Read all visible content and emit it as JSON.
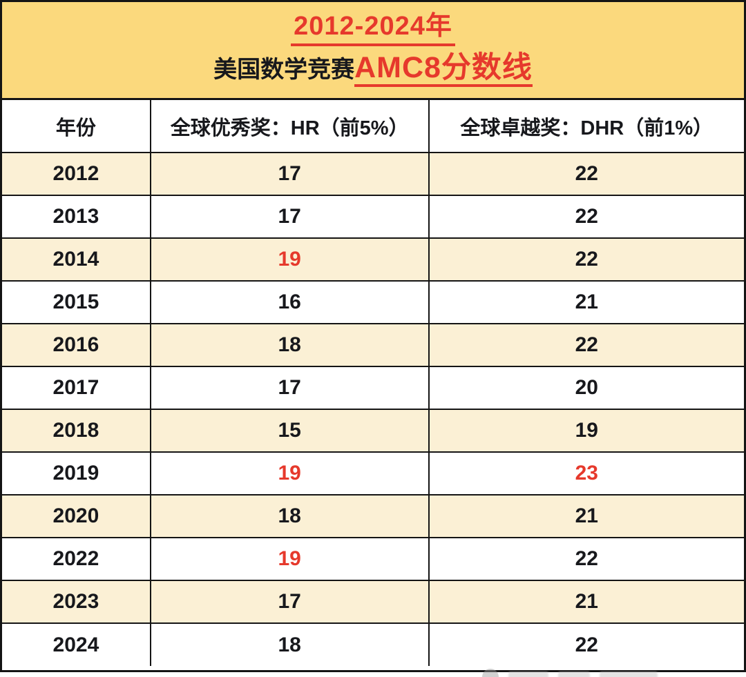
{
  "colors": {
    "accent_red": "#e6392c",
    "banner_bg": "#fbd97d",
    "row_alt_bg": "#fbf0d5",
    "ink": "#17181c",
    "border": "#141414"
  },
  "banner": {
    "title_line1": "2012-2024年",
    "subtitle_black": "美国数学竞赛",
    "subtitle_red": "AMC8分数线"
  },
  "table": {
    "headers": [
      "年份",
      "全球优秀奖：HR（前5%）",
      "全球卓越奖：DHR（前1%）"
    ],
    "rows": [
      {
        "year": "2012",
        "hr": "17",
        "dhr": "22",
        "hr_red": false,
        "dhr_red": false
      },
      {
        "year": "2013",
        "hr": "17",
        "dhr": "22",
        "hr_red": false,
        "dhr_red": false
      },
      {
        "year": "2014",
        "hr": "19",
        "dhr": "22",
        "hr_red": true,
        "dhr_red": false
      },
      {
        "year": "2015",
        "hr": "16",
        "dhr": "21",
        "hr_red": false,
        "dhr_red": false
      },
      {
        "year": "2016",
        "hr": "18",
        "dhr": "22",
        "hr_red": false,
        "dhr_red": false
      },
      {
        "year": "2017",
        "hr": "17",
        "dhr": "20",
        "hr_red": false,
        "dhr_red": false
      },
      {
        "year": "2018",
        "hr": "15",
        "dhr": "19",
        "hr_red": false,
        "dhr_red": false
      },
      {
        "year": "2019",
        "hr": "19",
        "dhr": "23",
        "hr_red": true,
        "dhr_red": true
      },
      {
        "year": "2020",
        "hr": "18",
        "dhr": "21",
        "hr_red": false,
        "dhr_red": false
      },
      {
        "year": "2022",
        "hr": "19",
        "dhr": "22",
        "hr_red": true,
        "dhr_red": false
      },
      {
        "year": "2023",
        "hr": "17",
        "dhr": "21",
        "hr_red": false,
        "dhr_red": false
      },
      {
        "year": "2024",
        "hr": "18",
        "dhr": "22",
        "hr_red": false,
        "dhr_red": false
      }
    ]
  }
}
